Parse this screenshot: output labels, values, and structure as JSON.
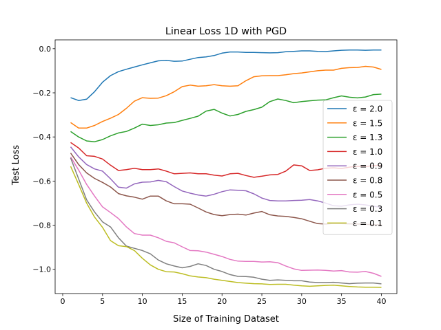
{
  "chart_data": {
    "type": "line",
    "title": "Linear Loss 1D with PGD",
    "xlabel": "Size of Training Dataset",
    "ylabel": "Test Loss",
    "xlim": [
      -0.95,
      41.95
    ],
    "ylim": [
      -1.11,
      0.04
    ],
    "x_ticks": [
      0,
      5,
      10,
      15,
      20,
      25,
      30,
      35,
      40
    ],
    "y_ticks": [
      0.0,
      -0.2,
      -0.4,
      -0.6,
      -0.8,
      -1.0
    ],
    "x_tick_labels": [
      "0",
      "5",
      "10",
      "15",
      "20",
      "25",
      "30",
      "35",
      "40"
    ],
    "y_tick_labels": [
      "0.0",
      "−0.2",
      "−0.4",
      "−0.6",
      "−0.8",
      "−1.0"
    ],
    "grid": false,
    "legend_position": "center-right",
    "x": [
      1,
      2,
      3,
      4,
      5,
      6,
      7,
      8,
      9,
      10,
      11,
      12,
      13,
      14,
      15,
      16,
      17,
      18,
      19,
      20,
      21,
      22,
      23,
      24,
      25,
      26,
      27,
      28,
      29,
      30,
      31,
      32,
      33,
      34,
      35,
      36,
      37,
      38,
      39,
      40
    ],
    "series": [
      {
        "name": "ε = 2.0",
        "color": "#1f77b4",
        "values": [
          -0.222,
          -0.235,
          -0.229,
          -0.195,
          -0.152,
          -0.122,
          -0.104,
          -0.093,
          -0.083,
          -0.073,
          -0.064,
          -0.055,
          -0.053,
          -0.057,
          -0.056,
          -0.048,
          -0.04,
          -0.037,
          -0.031,
          -0.02,
          -0.015,
          -0.015,
          -0.017,
          -0.017,
          -0.018,
          -0.019,
          -0.018,
          -0.014,
          -0.012,
          -0.01,
          -0.01,
          -0.012,
          -0.013,
          -0.01,
          -0.007,
          -0.006,
          -0.006,
          -0.007,
          -0.006,
          -0.006
        ]
      },
      {
        "name": "ε = 1.5",
        "color": "#ff7f0e",
        "values": [
          -0.335,
          -0.36,
          -0.36,
          -0.348,
          -0.33,
          -0.315,
          -0.298,
          -0.27,
          -0.238,
          -0.222,
          -0.225,
          -0.224,
          -0.213,
          -0.195,
          -0.172,
          -0.165,
          -0.17,
          -0.168,
          -0.163,
          -0.168,
          -0.17,
          -0.168,
          -0.145,
          -0.127,
          -0.123,
          -0.122,
          -0.122,
          -0.118,
          -0.113,
          -0.11,
          -0.105,
          -0.1,
          -0.097,
          -0.097,
          -0.089,
          -0.086,
          -0.085,
          -0.08,
          -0.083,
          -0.094
        ]
      },
      {
        "name": "ε = 1.3",
        "color": "#2ca02c",
        "values": [
          -0.375,
          -0.4,
          -0.418,
          -0.422,
          -0.412,
          -0.395,
          -0.382,
          -0.375,
          -0.36,
          -0.342,
          -0.348,
          -0.345,
          -0.337,
          -0.335,
          -0.325,
          -0.316,
          -0.306,
          -0.283,
          -0.275,
          -0.292,
          -0.305,
          -0.298,
          -0.284,
          -0.276,
          -0.265,
          -0.24,
          -0.228,
          -0.235,
          -0.245,
          -0.24,
          -0.236,
          -0.233,
          -0.232,
          -0.222,
          -0.214,
          -0.22,
          -0.223,
          -0.219,
          -0.208,
          -0.206
        ]
      },
      {
        "name": "ε = 1.0",
        "color": "#d62728",
        "values": [
          -0.425,
          -0.45,
          -0.485,
          -0.488,
          -0.5,
          -0.528,
          -0.552,
          -0.548,
          -0.542,
          -0.548,
          -0.548,
          -0.545,
          -0.555,
          -0.567,
          -0.565,
          -0.563,
          -0.567,
          -0.567,
          -0.573,
          -0.577,
          -0.567,
          -0.565,
          -0.575,
          -0.583,
          -0.578,
          -0.572,
          -0.57,
          -0.555,
          -0.527,
          -0.531,
          -0.552,
          -0.549,
          -0.542,
          -0.54,
          -0.543,
          -0.537,
          -0.533,
          -0.535,
          -0.53,
          -0.53
        ]
      },
      {
        "name": "ε = 0.9",
        "color": "#9467bd",
        "values": [
          -0.445,
          -0.49,
          -0.525,
          -0.545,
          -0.555,
          -0.59,
          -0.628,
          -0.632,
          -0.613,
          -0.605,
          -0.604,
          -0.597,
          -0.603,
          -0.625,
          -0.645,
          -0.655,
          -0.663,
          -0.668,
          -0.66,
          -0.648,
          -0.64,
          -0.642,
          -0.644,
          -0.658,
          -0.677,
          -0.688,
          -0.69,
          -0.69,
          -0.688,
          -0.687,
          -0.684,
          -0.69,
          -0.7,
          -0.712,
          -0.714,
          -0.708,
          -0.705,
          -0.708,
          -0.714,
          -0.72
        ]
      },
      {
        "name": "ε = 0.8",
        "color": "#8c564b",
        "values": [
          -0.473,
          -0.525,
          -0.563,
          -0.588,
          -0.606,
          -0.627,
          -0.657,
          -0.667,
          -0.673,
          -0.682,
          -0.668,
          -0.668,
          -0.69,
          -0.703,
          -0.703,
          -0.705,
          -0.722,
          -0.74,
          -0.752,
          -0.757,
          -0.752,
          -0.75,
          -0.754,
          -0.745,
          -0.738,
          -0.753,
          -0.758,
          -0.76,
          -0.765,
          -0.771,
          -0.782,
          -0.793,
          -0.795,
          -0.792,
          -0.793,
          -0.794,
          -0.795,
          -0.796,
          -0.798,
          -0.798
        ]
      },
      {
        "name": "ε = 0.5",
        "color": "#e377c2",
        "values": [
          -0.49,
          -0.55,
          -0.615,
          -0.668,
          -0.717,
          -0.743,
          -0.77,
          -0.808,
          -0.838,
          -0.845,
          -0.845,
          -0.857,
          -0.873,
          -0.88,
          -0.898,
          -0.915,
          -0.916,
          -0.922,
          -0.932,
          -0.942,
          -0.955,
          -0.963,
          -0.964,
          -0.964,
          -0.967,
          -0.966,
          -0.97,
          -0.985,
          -0.998,
          -1.005,
          -1.004,
          -1.003,
          -1.005,
          -1.008,
          -1.006,
          -1.012,
          -1.013,
          -1.01,
          -1.018,
          -1.032
        ]
      },
      {
        "name": "ε = 0.3",
        "color": "#7f7f7f",
        "values": [
          -0.495,
          -0.59,
          -0.685,
          -0.74,
          -0.785,
          -0.808,
          -0.857,
          -0.895,
          -0.905,
          -0.915,
          -0.93,
          -0.958,
          -0.975,
          -0.985,
          -0.993,
          -0.987,
          -0.975,
          -0.983,
          -1.0,
          -1.01,
          -1.024,
          -1.032,
          -1.033,
          -1.036,
          -1.045,
          -1.05,
          -1.048,
          -1.05,
          -1.052,
          -1.052,
          -1.058,
          -1.06,
          -1.06,
          -1.059,
          -1.062,
          -1.065,
          -1.063,
          -1.062,
          -1.062,
          -1.066
        ]
      },
      {
        "name": "ε = 0.1",
        "color": "#bcbd22",
        "values": [
          -0.533,
          -0.615,
          -0.7,
          -0.763,
          -0.81,
          -0.87,
          -0.893,
          -0.897,
          -0.915,
          -0.95,
          -0.98,
          -1.0,
          -1.011,
          -1.012,
          -1.02,
          -1.03,
          -1.035,
          -1.038,
          -1.045,
          -1.05,
          -1.055,
          -1.06,
          -1.063,
          -1.065,
          -1.066,
          -1.069,
          -1.068,
          -1.068,
          -1.072,
          -1.075,
          -1.077,
          -1.075,
          -1.073,
          -1.072,
          -1.075,
          -1.078,
          -1.08,
          -1.081,
          -1.081,
          -1.082
        ]
      }
    ]
  }
}
